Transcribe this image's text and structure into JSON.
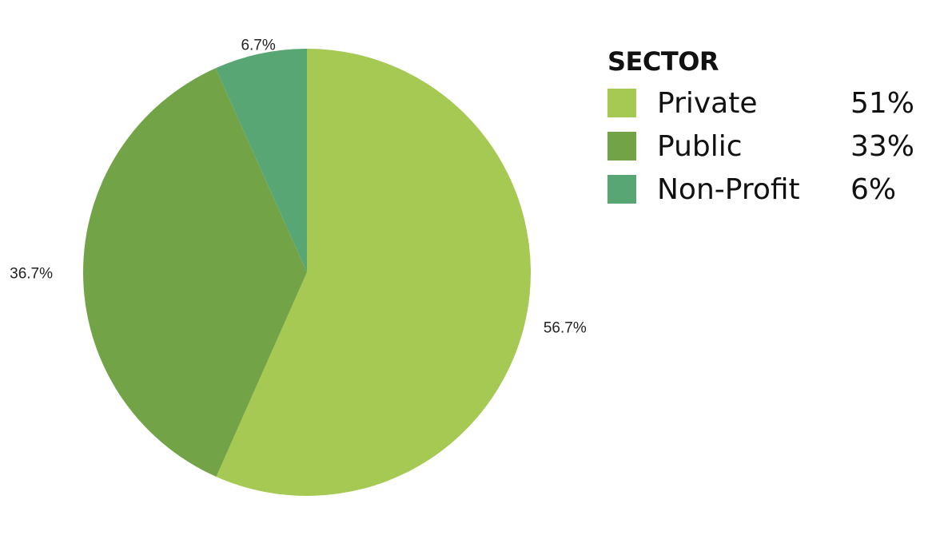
{
  "chart_data": {
    "type": "pie",
    "title": "",
    "categories": [
      "Private",
      "Public",
      "Non-Profit"
    ],
    "values": [
      56.7,
      36.7,
      6.7
    ],
    "slice_labels": [
      "56.7%",
      "36.7%",
      "6.7%"
    ],
    "colors": [
      "#a5c952",
      "#72a347",
      "#58a673"
    ],
    "legend": {
      "title": "SECTOR",
      "placement": "right",
      "entries": [
        {
          "label": "Private",
          "value": "51%",
          "color": "#a5c952"
        },
        {
          "label": "Public",
          "value": "33%",
          "color": "#72a347"
        },
        {
          "label": "Non-Profit",
          "value": "6%",
          "color": "#58a673"
        }
      ]
    }
  }
}
